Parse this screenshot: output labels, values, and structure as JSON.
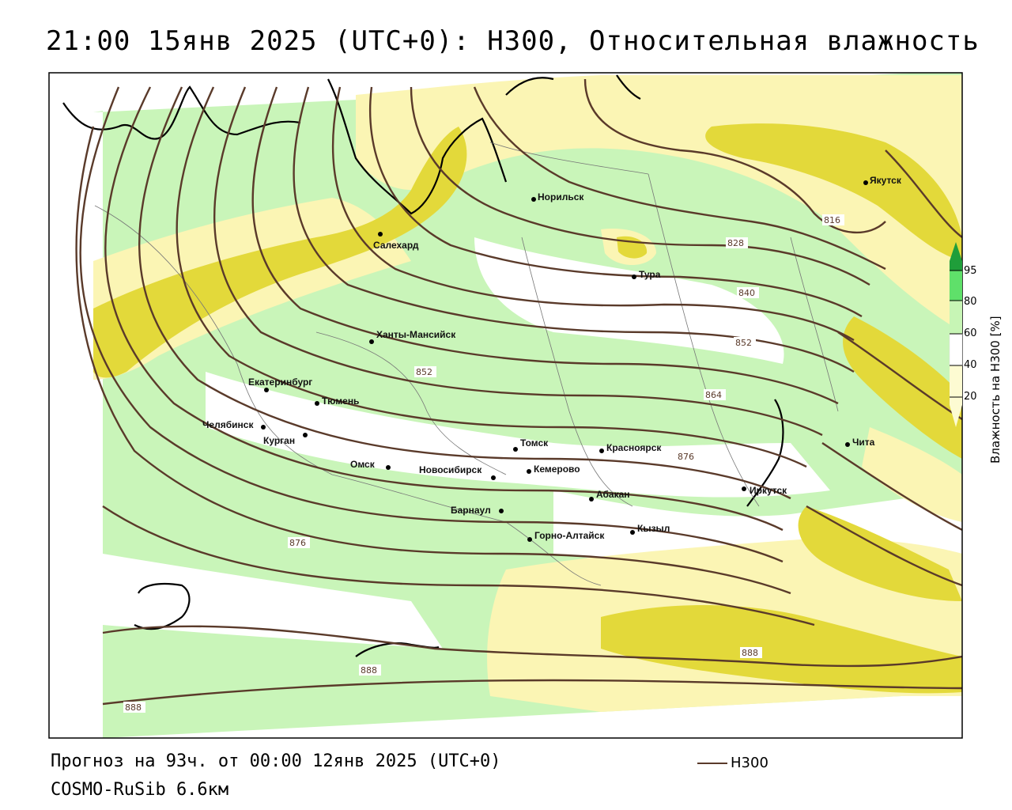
{
  "title": "21:00 15янв 2025 (UTC+0): H300, Относительная влажность",
  "footer": {
    "forecast": "Прогноз на 93ч. от 00:00 12янв 2025 (UTC+0)",
    "model": "COSMO-RuSib 6.6км"
  },
  "legend": {
    "line_label": "H300",
    "line_color": "#5a3a2a"
  },
  "colorbar": {
    "title": "Влажность на H300 [%]",
    "ticks": [
      "95",
      "80",
      "60",
      "40",
      "20"
    ],
    "colors": {
      "c20": "#fdfbd2",
      "c40": "#ffffff",
      "c60": "#c7f5b5",
      "c80": "#5fe06a",
      "c95": "#1f9e3a"
    }
  },
  "fill_colors": {
    "light_yellow": "#fbf5b4",
    "dark_yellow": "#e3d93a",
    "light_green": "#c9f5b9"
  },
  "cities": [
    {
      "name": "Якутск"
    },
    {
      "name": "Норильск"
    },
    {
      "name": "Салехард"
    },
    {
      "name": "Тура"
    },
    {
      "name": "Ханты-Мансийск"
    },
    {
      "name": "Екатеринбург"
    },
    {
      "name": "Тюмень"
    },
    {
      "name": "Челябинск"
    },
    {
      "name": "Курган"
    },
    {
      "name": "Омск"
    },
    {
      "name": "Томск"
    },
    {
      "name": "Красноярск"
    },
    {
      "name": "Новосибирск"
    },
    {
      "name": "Кемерово"
    },
    {
      "name": "Абакан"
    },
    {
      "name": "Иркутск"
    },
    {
      "name": "Барнаул"
    },
    {
      "name": "Горно-Алтайск"
    },
    {
      "name": "Кызыл"
    },
    {
      "name": "Чита"
    }
  ],
  "contour_labels": [
    "816",
    "828",
    "840",
    "852",
    "852",
    "864",
    "876",
    "876",
    "888",
    "888",
    "888"
  ]
}
